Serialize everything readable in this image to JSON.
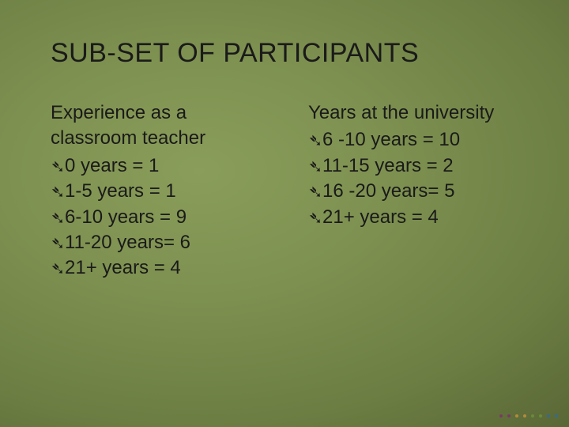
{
  "title": "SUB-SET OF PARTICIPANTS",
  "left": {
    "heading": "Experience as a classroom teacher",
    "items": [
      " 0 years = 1",
      "1-5 years = 1",
      "6-10 years = 9",
      "11-20 years= 6",
      "21+ years = 4"
    ]
  },
  "right": {
    "heading": "Years at the university",
    "items": [
      "6 -10 years = 10",
      "11-15 years = 2",
      "16 -20 years= 5",
      "21+ years = 4"
    ]
  },
  "bullet_glyph": "➴",
  "decor_colors": [
    "#7a3a66",
    "#7a3a66",
    "#b58a3a",
    "#b58a3a",
    "#6a8a3a",
    "#6a8a3a",
    "#3a6a8a",
    "#3a6a8a"
  ]
}
